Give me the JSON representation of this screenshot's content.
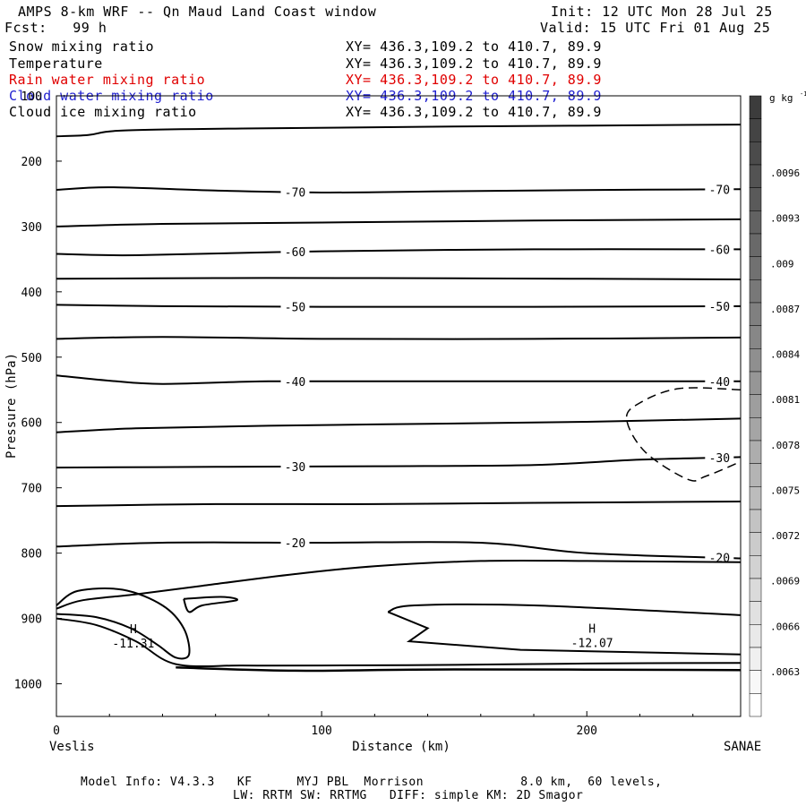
{
  "header": {
    "title": "AMPS 8-km WRF -- Qn Maud Land Coast window",
    "init": "Init: 12 UTC Mon 28 Jul 25",
    "forecast": "Fcst:   99 h",
    "valid": "Valid: 15 UTC Fri 01 Aug 25"
  },
  "legend": [
    {
      "label": "Snow mixing ratio",
      "xy": "XY= 436.3,109.2 to 410.7, 89.9",
      "color": "#000000"
    },
    {
      "label": "Temperature",
      "xy": "XY= 436.3,109.2 to 410.7, 89.9",
      "color": "#000000"
    },
    {
      "label": "Rain water mixing ratio",
      "xy": "XY= 436.3,109.2 to 410.7, 89.9",
      "color": "#e00000"
    },
    {
      "label": "Cloud water mixing ratio",
      "xy": "XY= 436.3,109.2 to 410.7, 89.9",
      "color": "#2020d0"
    },
    {
      "label": "Cloud ice mixing ratio",
      "xy": "XY= 436.3,109.2 to 410.7, 89.9",
      "color": "#000000"
    }
  ],
  "footer": {
    "line1": "Model Info: V4.3.3   KF      MYJ PBL  Morrison             8.0 km,  60 levels,",
    "line2": "LW: RRTM SW: RRTMG   DIFF: simple KM: 2D Smagor"
  },
  "chart_data": {
    "type": "contour",
    "xlabel": "Distance (km)",
    "ylabel": "Pressure (hPa)",
    "xlim": [
      0,
      258
    ],
    "ylim": [
      1050,
      100
    ],
    "x_ticks": [
      0,
      100,
      200
    ],
    "y_ticks": [
      100,
      200,
      300,
      400,
      500,
      600,
      700,
      800,
      900,
      1000
    ],
    "x_endpoints": {
      "left": "Veslis",
      "right": "SANAE"
    },
    "temperature_contours": [
      {
        "label": "-70",
        "points": [
          [
            0,
            162
          ],
          [
            12,
            160
          ],
          [
            25,
            153
          ],
          [
            70,
            150
          ],
          [
            150,
            147
          ],
          [
            258,
            144
          ]
        ]
      },
      {
        "label": "-70",
        "points": [
          [
            0,
            244
          ],
          [
            20,
            240
          ],
          [
            60,
            245
          ],
          [
            100,
            248
          ],
          [
            150,
            246
          ],
          [
            210,
            244
          ],
          [
            258,
            243
          ]
        ]
      },
      {
        "label": "-60",
        "points": [
          [
            0,
            300
          ],
          [
            40,
            296
          ],
          [
            100,
            294
          ],
          [
            180,
            291
          ],
          [
            258,
            289
          ]
        ]
      },
      {
        "label": "-60",
        "points": [
          [
            0,
            342
          ],
          [
            30,
            344
          ],
          [
            100,
            338
          ],
          [
            180,
            335
          ],
          [
            258,
            335
          ]
        ]
      },
      {
        "label": "-50",
        "points": [
          [
            0,
            380
          ],
          [
            60,
            379
          ],
          [
            120,
            379
          ],
          [
            200,
            380
          ],
          [
            258,
            381
          ]
        ]
      },
      {
        "label": "-50",
        "points": [
          [
            0,
            420
          ],
          [
            40,
            422
          ],
          [
            100,
            423
          ],
          [
            180,
            423
          ],
          [
            258,
            422
          ]
        ]
      },
      {
        "label": "-50",
        "points": [
          [
            0,
            472
          ],
          [
            40,
            469
          ],
          [
            100,
            472
          ],
          [
            180,
            472
          ],
          [
            258,
            470
          ]
        ]
      },
      {
        "label": "-40",
        "points": [
          [
            0,
            528
          ],
          [
            20,
            536
          ],
          [
            40,
            541
          ],
          [
            80,
            537
          ],
          [
            140,
            537
          ],
          [
            200,
            537
          ],
          [
            258,
            537
          ]
        ]
      },
      {
        "label": "-40",
        "points": [
          [
            0,
            615
          ],
          [
            30,
            609
          ],
          [
            80,
            605
          ],
          [
            140,
            602
          ],
          [
            200,
            599
          ],
          [
            258,
            594
          ]
        ]
      },
      {
        "label": "-30",
        "points": [
          [
            0,
            669
          ],
          [
            60,
            668
          ],
          [
            120,
            667
          ],
          [
            180,
            665
          ],
          [
            220,
            657
          ],
          [
            258,
            653
          ]
        ]
      },
      {
        "label": "-30",
        "points": [
          [
            0,
            728
          ],
          [
            60,
            725
          ],
          [
            120,
            725
          ],
          [
            180,
            723
          ],
          [
            258,
            721
          ]
        ]
      },
      {
        "label": "-20",
        "points": [
          [
            0,
            790
          ],
          [
            40,
            784
          ],
          [
            100,
            784
          ],
          [
            160,
            784
          ],
          [
            200,
            800
          ],
          [
            258,
            808
          ]
        ]
      },
      {
        "label": "-20",
        "points": [
          [
            0,
            885
          ],
          [
            10,
            872
          ],
          [
            30,
            863
          ],
          [
            55,
            850
          ],
          [
            90,
            832
          ],
          [
            120,
            820
          ],
          [
            160,
            812
          ],
          [
            200,
            812
          ],
          [
            258,
            814
          ]
        ]
      }
    ],
    "maxima": [
      {
        "label": "H",
        "value": "-11.31",
        "x": 29,
        "p": 950
      },
      {
        "label": "H",
        "value": "-12.07",
        "x": 202,
        "p": 949
      }
    ],
    "colorbar": {
      "units": "g kg",
      "units_superscript": "-1",
      "ticks": [
        ".0096",
        ".0093",
        ".009",
        ".0087",
        ".0084",
        ".0081",
        ".0078",
        ".0075",
        ".0072",
        ".0069",
        ".0066",
        ".0063"
      ],
      "levels": 27
    }
  }
}
